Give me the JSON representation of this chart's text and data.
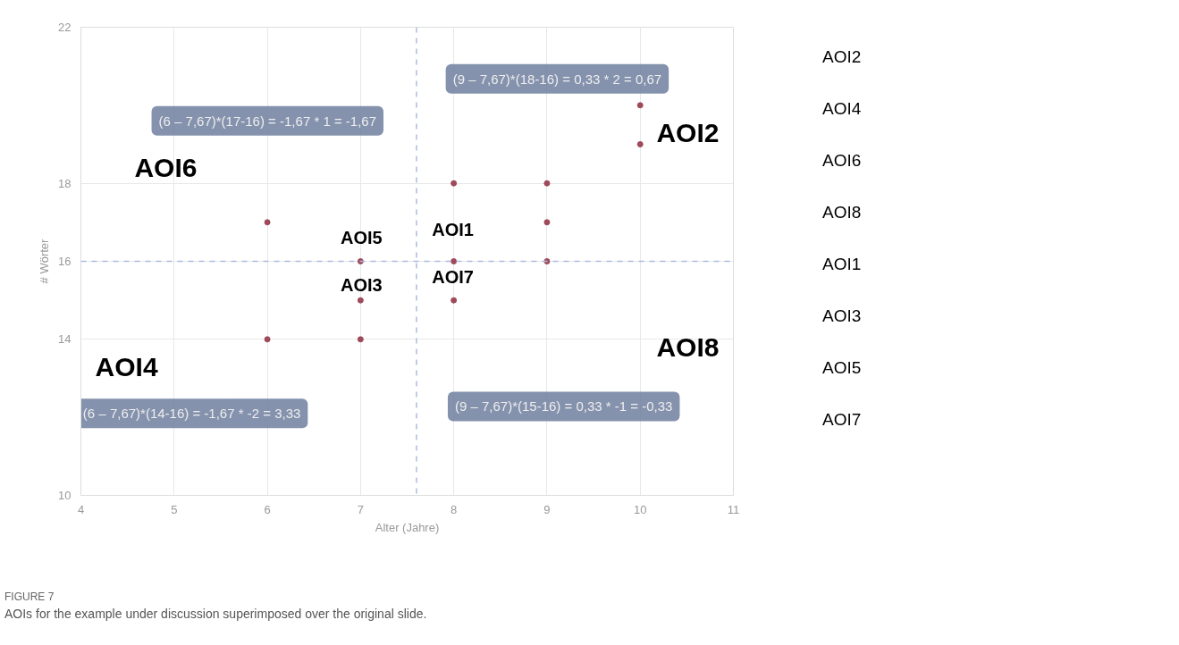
{
  "chart_data": {
    "type": "scatter",
    "title": "FIGURE 7",
    "subtitle": "AOIs for the example under discussion superimposed over the original slide.",
    "xlabel": "Alter (Jahre)",
    "ylabel": "# Wörter",
    "x": [
      6,
      6,
      7,
      7,
      7,
      8,
      8,
      8,
      9,
      9,
      9,
      10,
      10
    ],
    "series": [
      {
        "color": "#9e4a5a",
        "values": [
          17,
          14,
          16,
          15,
          14,
          18,
          16,
          15,
          18,
          17,
          16,
          20,
          19
        ]
      }
    ],
    "marker": "circle",
    "grid": true,
    "xlim": [
      4,
      11
    ],
    "ylim": [
      10,
      22
    ],
    "xticks": [
      4,
      5,
      6,
      7,
      8,
      9,
      10,
      11
    ],
    "yticks": [
      10,
      14,
      16,
      18,
      22
    ],
    "ref_lines": [
      {
        "axis": "x",
        "value": 7.6,
        "color": "#aabbdd",
        "line_style": "dashed"
      },
      {
        "axis": "y",
        "value": 16,
        "color": "#aabbdd",
        "line_style": "dashed"
      }
    ],
    "annotations": [
      "(6 – 7,67)*(17-16) = -1,67 * 1 = -1,67",
      "(9 – 7,67)*(18-16) = 0,33 * 2 = 0,67",
      "(6 – 7,67)*(14-16) = -1,67 * -2 = 3,33",
      "(9 – 7,67)*(15-16) = 0,33 * -1 = -0,33",
      "AOI6",
      "AOI2",
      "AOI5",
      "AOI1",
      "AOI3",
      "AOI7",
      "AOI4",
      "AOI8",
      "AOI2",
      "AOI4",
      "AOI6",
      "AOI8",
      "AOI1",
      "AOI3",
      "AOI5",
      "AOI7"
    ]
  }
}
